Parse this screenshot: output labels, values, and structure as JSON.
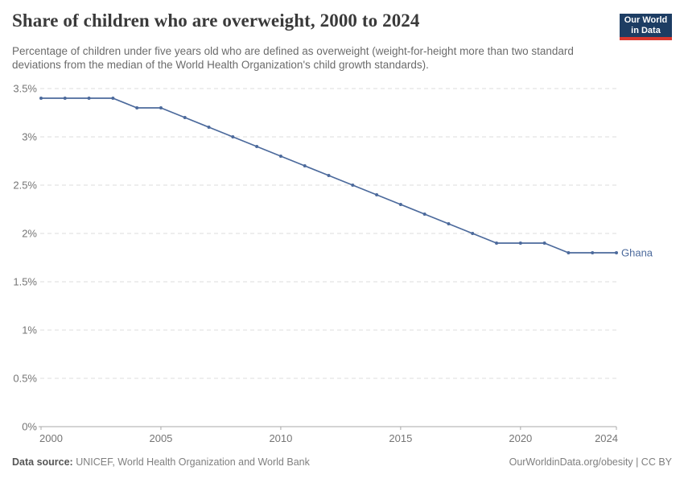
{
  "header": {
    "title": "Share of children who are overweight, 2000 to 2024",
    "subtitle": "Percentage of children under five years old who are defined as overweight (weight-for-height more than two standard deviations from the median of the World Health Organization's child growth standards).",
    "logo": {
      "line1": "Our World",
      "line2": "in Data"
    }
  },
  "chart_data": {
    "type": "line",
    "title": "Share of children who are overweight, 2000 to 2024",
    "x": [
      2000,
      2001,
      2002,
      2003,
      2004,
      2005,
      2006,
      2007,
      2008,
      2009,
      2010,
      2011,
      2012,
      2013,
      2014,
      2015,
      2016,
      2017,
      2018,
      2019,
      2020,
      2021,
      2022,
      2023,
      2024
    ],
    "series": [
      {
        "name": "Ghana",
        "values": [
          3.4,
          3.4,
          3.4,
          3.4,
          3.3,
          3.3,
          3.2,
          3.1,
          3.0,
          2.9,
          2.8,
          2.7,
          2.6,
          2.5,
          2.4,
          2.3,
          2.2,
          2.1,
          2.0,
          1.9,
          1.9,
          1.9,
          1.8,
          1.8,
          1.8
        ],
        "color": "#4c6a9c"
      }
    ],
    "xlabel": "",
    "ylabel": "",
    "xlim": [
      2000,
      2024
    ],
    "ylim": [
      0,
      3.5
    ],
    "x_ticks": [
      2000,
      2005,
      2010,
      2015,
      2020,
      2024
    ],
    "y_ticks": [
      0,
      0.5,
      1,
      1.5,
      2,
      2.5,
      3,
      3.5
    ],
    "y_tick_labels": [
      "0%",
      "0.5%",
      "1%",
      "1.5%",
      "2%",
      "2.5%",
      "3%",
      "3.5%"
    ],
    "grid": "horizontal dashed",
    "legend_position": "end-of-line label"
  },
  "footer": {
    "source_label": "Data source:",
    "source_text": " UNICEF, World Health Organization and World Bank",
    "attribution": "OurWorldinData.org/obesity | CC BY"
  },
  "colors": {
    "line": "#4c6a9c",
    "grid": "#dcdcdc",
    "axis": "#a8a8a8",
    "tick_label": "#757575",
    "title": "#3a3a3a",
    "subtitle": "#6b6b6b",
    "footer": "#7f7f7f",
    "logo_bg": "#1d3d63",
    "logo_accent": "#d9382e"
  }
}
